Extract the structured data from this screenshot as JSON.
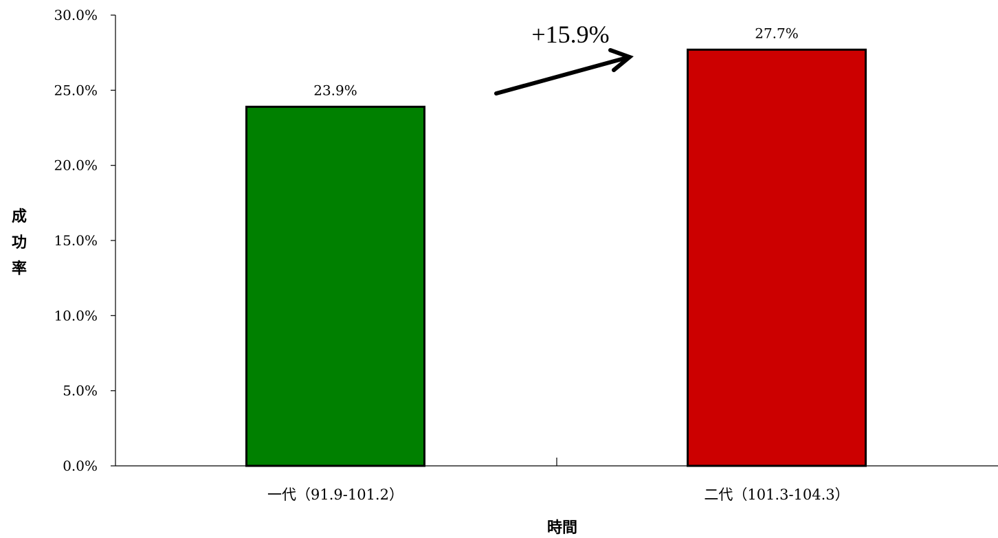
{
  "chart_data": {
    "type": "bar",
    "categories": [
      "一代（91.9-101.2）",
      "二代（101.3-104.3）"
    ],
    "values": [
      23.9,
      27.7
    ],
    "data_labels": [
      "23.9%",
      "27.7%"
    ],
    "bar_colors": [
      "#008000",
      "#CC0000"
    ],
    "xlabel": "時間",
    "ylabel": "成功率",
    "ylim": [
      0,
      30
    ],
    "yticks": [
      0,
      5,
      10,
      15,
      20,
      25,
      30
    ],
    "ytick_labels": [
      "0.0%",
      "5.0%",
      "10.0%",
      "15.0%",
      "20.0%",
      "25.0%",
      "30.0%"
    ],
    "grid": false,
    "legend": "none",
    "annotation": {
      "text": "+15.9%",
      "shape": "arrow"
    }
  }
}
